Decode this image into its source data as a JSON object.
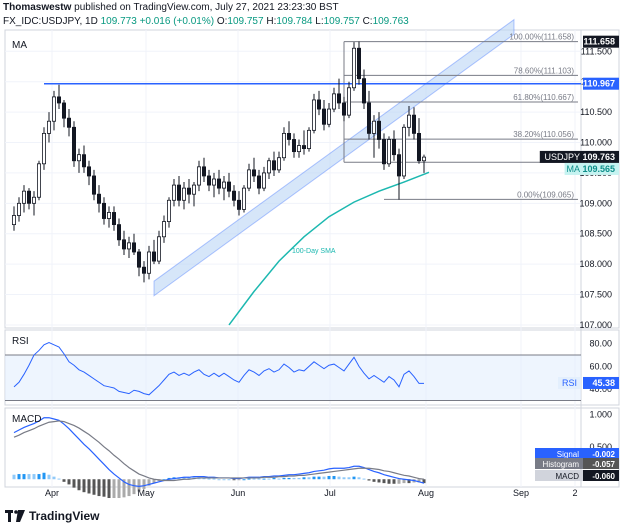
{
  "header": {
    "author": "Thomaswestw",
    "published": "published on TradingView.com, July 27, 2021 23:23:30 BST"
  },
  "symbol_line": {
    "symbol": "FX_IDC:USDJPY, 1D",
    "last": "109.773",
    "change": "+0.016 (+0.01%)",
    "o_label": "O:",
    "o": "109.757",
    "h_label": "H:",
    "h": "109.784",
    "l_label": "L:",
    "l": "109.757",
    "c_label": "C:",
    "c": "109.763"
  },
  "footer": {
    "brand": "TradingView"
  },
  "chart_data": [
    {
      "type": "candlestick",
      "pane_label": "MA",
      "y_ticks": [
        "111.500",
        "111.000",
        "110.500",
        "110.000",
        "109.500",
        "109.000",
        "108.500",
        "108.000",
        "107.500",
        "107.000"
      ],
      "ylim": [
        106.95,
        111.85
      ],
      "x_ticks": [
        "Apr",
        "May",
        "Jun",
        "Jul",
        "Aug",
        "Sep",
        "2"
      ],
      "candles": [
        [
          108.65,
          108.95,
          108.55,
          108.8
        ],
        [
          108.8,
          109.1,
          108.7,
          109.0
        ],
        [
          109.0,
          109.3,
          108.85,
          109.2
        ],
        [
          109.2,
          109.25,
          108.9,
          109.0
        ],
        [
          109.0,
          109.2,
          108.8,
          109.1
        ],
        [
          109.1,
          109.7,
          109.05,
          109.65
        ],
        [
          109.65,
          110.25,
          109.55,
          110.15
        ],
        [
          110.15,
          110.5,
          110.0,
          110.35
        ],
        [
          110.35,
          110.85,
          110.2,
          110.75
        ],
        [
          110.75,
          110.95,
          110.55,
          110.65
        ],
        [
          110.65,
          110.7,
          110.25,
          110.4
        ],
        [
          110.4,
          110.55,
          110.1,
          110.25
        ],
        [
          110.25,
          110.35,
          109.6,
          109.7
        ],
        [
          109.7,
          109.9,
          109.5,
          109.8
        ],
        [
          109.8,
          109.95,
          109.5,
          109.6
        ],
        [
          109.6,
          109.7,
          109.3,
          109.45
        ],
        [
          109.45,
          109.55,
          109.05,
          109.15
        ],
        [
          109.15,
          109.3,
          108.85,
          109.0
        ],
        [
          109.0,
          109.1,
          108.65,
          108.75
        ],
        [
          108.75,
          108.95,
          108.6,
          108.85
        ],
        [
          108.85,
          108.95,
          108.55,
          108.65
        ],
        [
          108.65,
          108.75,
          108.3,
          108.4
        ],
        [
          108.4,
          108.55,
          108.15,
          108.25
        ],
        [
          108.25,
          108.45,
          108.1,
          108.35
        ],
        [
          108.35,
          108.5,
          108.15,
          108.2
        ],
        [
          108.2,
          108.25,
          107.8,
          107.95
        ],
        [
          107.95,
          108.05,
          107.7,
          107.85
        ],
        [
          107.85,
          108.3,
          107.75,
          108.2
        ],
        [
          108.2,
          108.4,
          108.0,
          108.05
        ],
        [
          108.05,
          108.55,
          108.0,
          108.45
        ],
        [
          108.45,
          108.8,
          108.35,
          108.7
        ],
        [
          108.7,
          109.1,
          108.6,
          109.05
        ],
        [
          109.05,
          109.4,
          108.95,
          109.3
        ],
        [
          109.3,
          109.45,
          108.95,
          109.05
        ],
        [
          109.05,
          109.35,
          108.9,
          109.25
        ],
        [
          109.25,
          109.4,
          109.0,
          109.15
        ],
        [
          109.15,
          109.35,
          108.95,
          109.3
        ],
        [
          109.3,
          109.7,
          109.2,
          109.6
        ],
        [
          109.6,
          109.75,
          109.35,
          109.45
        ],
        [
          109.45,
          109.55,
          109.2,
          109.3
        ],
        [
          109.3,
          109.5,
          109.1,
          109.4
        ],
        [
          109.4,
          109.55,
          109.15,
          109.25
        ],
        [
          109.25,
          109.45,
          109.05,
          109.35
        ],
        [
          109.35,
          109.5,
          109.1,
          109.2
        ],
        [
          109.2,
          109.3,
          108.95,
          109.05
        ],
        [
          109.05,
          109.2,
          108.8,
          108.9
        ],
        [
          108.9,
          109.3,
          108.85,
          109.25
        ],
        [
          109.25,
          109.65,
          109.2,
          109.55
        ],
        [
          109.55,
          109.75,
          109.35,
          109.45
        ],
        [
          109.45,
          109.55,
          109.15,
          109.25
        ],
        [
          109.25,
          109.6,
          109.2,
          109.5
        ],
        [
          109.5,
          109.75,
          109.4,
          109.7
        ],
        [
          109.7,
          109.85,
          109.45,
          109.55
        ],
        [
          109.55,
          109.85,
          109.5,
          109.75
        ],
        [
          109.75,
          110.25,
          109.7,
          110.15
        ],
        [
          110.15,
          110.35,
          109.95,
          110.05
        ],
        [
          110.05,
          110.15,
          109.75,
          109.85
        ],
        [
          109.85,
          110.05,
          109.75,
          109.95
        ],
        [
          109.95,
          110.2,
          109.8,
          109.9
        ],
        [
          109.9,
          110.25,
          109.85,
          110.2
        ],
        [
          110.2,
          110.8,
          110.15,
          110.7
        ],
        [
          110.7,
          110.85,
          110.45,
          110.55
        ],
        [
          110.55,
          110.7,
          110.2,
          110.3
        ],
        [
          110.3,
          110.65,
          110.25,
          110.55
        ],
        [
          110.55,
          110.9,
          110.5,
          110.8
        ],
        [
          110.8,
          111.05,
          110.55,
          110.65
        ],
        [
          110.65,
          110.75,
          110.35,
          110.45
        ],
        [
          110.45,
          111.0,
          110.4,
          110.9
        ],
        [
          110.9,
          111.65,
          110.85,
          111.55
        ],
        [
          111.55,
          111.66,
          110.95,
          111.05
        ],
        [
          111.05,
          111.2,
          110.55,
          110.65
        ],
        [
          110.65,
          110.85,
          110.05,
          110.15
        ],
        [
          110.15,
          110.45,
          109.75,
          110.35
        ],
        [
          110.35,
          110.5,
          109.9,
          110.05
        ],
        [
          110.05,
          110.15,
          109.55,
          109.65
        ],
        [
          109.65,
          110.1,
          109.6,
          110.05
        ],
        [
          110.05,
          110.2,
          109.7,
          109.8
        ],
        [
          109.8,
          109.9,
          109.06,
          109.45
        ],
        [
          109.45,
          110.3,
          109.4,
          110.25
        ],
        [
          110.25,
          110.6,
          110.1,
          110.45
        ],
        [
          110.45,
          110.58,
          110.05,
          110.15
        ],
        [
          110.15,
          110.4,
          109.65,
          109.7
        ],
        [
          109.7,
          109.8,
          109.5,
          109.76
        ]
      ],
      "fibonacci": [
        {
          "label": "100.00%(111.658)",
          "value": 111.658
        },
        {
          "label": "78.60%(111.103)",
          "value": 111.103
        },
        {
          "label": "61.80%(110.667)",
          "value": 110.667
        },
        {
          "label": "38.20%(110.056)",
          "value": 110.056
        },
        {
          "label": "23.60%(1",
          "value": 109.675
        },
        {
          "label": "0.00%(109.065)",
          "value": 109.065
        }
      ],
      "horizontal_line": {
        "value": 110.967,
        "color": "#2962ff"
      },
      "channel": {
        "from": [
          28,
          107.48
        ],
        "to": [
          100,
          111.78
        ],
        "width": 0.24
      },
      "sma": {
        "name": "100-Day SMA",
        "color": "#1cb8b0",
        "points": [
          [
            43,
            107.0
          ],
          [
            48,
            107.55
          ],
          [
            53,
            108.05
          ],
          [
            58,
            108.45
          ],
          [
            63,
            108.78
          ],
          [
            68,
            109.02
          ],
          [
            73,
            109.2
          ],
          [
            78,
            109.35
          ],
          [
            83,
            109.51
          ]
        ]
      },
      "price_labels": [
        {
          "text": "111.658",
          "value": 111.658,
          "bg": "#131722",
          "fg": "#ffffff"
        },
        {
          "text": "110.967",
          "value": 110.967,
          "bg": "#2962ff",
          "fg": "#ffffff"
        },
        {
          "text": "109.763",
          "value": 109.763,
          "bg": "#131722",
          "fg": "#ffffff",
          "tag": "USDJPY"
        },
        {
          "text": "109.565",
          "value": 109.565,
          "bg": "#c6f3f1",
          "fg": "#0e8f8a",
          "tag": "MA"
        }
      ]
    },
    {
      "type": "line",
      "pane_label": "RSI",
      "ylim": [
        26,
        92
      ],
      "y_ticks": [
        "80.00",
        "60.00",
        "40.00"
      ],
      "band": [
        30,
        70
      ],
      "current": "45.38",
      "color": "#2962ff",
      "values": [
        42,
        46,
        53,
        61,
        70,
        74,
        79,
        81,
        79,
        77,
        71,
        64,
        61,
        57,
        55,
        52,
        49,
        46,
        43,
        42,
        41,
        38,
        37,
        36,
        39,
        38,
        36,
        35,
        39,
        43,
        48,
        53,
        55,
        52,
        54,
        52,
        55,
        57,
        53,
        51,
        54,
        51,
        54,
        51,
        48,
        46,
        52,
        57,
        55,
        52,
        56,
        58,
        55,
        57,
        62,
        59,
        55,
        57,
        56,
        60,
        64,
        61,
        58,
        61,
        62,
        59,
        56,
        62,
        68,
        60,
        54,
        49,
        52,
        49,
        46,
        51,
        48,
        42,
        53,
        56,
        51,
        45,
        45
      ]
    },
    {
      "type": "line",
      "pane_label": "MACD",
      "ylim": [
        -0.12,
        1.1
      ],
      "y_ticks": [
        "1.000",
        "0.500"
      ],
      "signal_name": "Signal",
      "signal_value": "-0.002",
      "histogram_name": "Histogram",
      "histogram_value": "-0.057",
      "macd_name": "MACD",
      "macd_value": "-0.060",
      "macd": [
        0.72,
        0.76,
        0.8,
        0.83,
        0.86,
        0.9,
        0.95,
        0.95,
        0.93,
        0.91,
        0.85,
        0.78,
        0.7,
        0.62,
        0.54,
        0.47,
        0.39,
        0.31,
        0.23,
        0.15,
        0.08,
        0.02,
        -0.04,
        -0.08,
        -0.1,
        -0.11,
        -0.1,
        -0.08,
        -0.06,
        -0.04,
        -0.02,
        0.0,
        0.01,
        0.02,
        0.03,
        0.03,
        0.04,
        0.04,
        0.04,
        0.03,
        0.03,
        0.02,
        0.02,
        0.02,
        0.01,
        0.01,
        0.02,
        0.03,
        0.03,
        0.03,
        0.04,
        0.04,
        0.05,
        0.05,
        0.06,
        0.07,
        0.07,
        0.08,
        0.09,
        0.1,
        0.12,
        0.13,
        0.14,
        0.16,
        0.17,
        0.17,
        0.17,
        0.18,
        0.2,
        0.2,
        0.18,
        0.15,
        0.12,
        0.1,
        0.07,
        0.05,
        0.03,
        0.01,
        0.0,
        -0.01,
        -0.02,
        -0.04,
        -0.06
      ],
      "signal": [
        0.65,
        0.68,
        0.72,
        0.75,
        0.78,
        0.82,
        0.85,
        0.88,
        0.89,
        0.9,
        0.89,
        0.86,
        0.83,
        0.79,
        0.74,
        0.69,
        0.63,
        0.57,
        0.5,
        0.44,
        0.37,
        0.31,
        0.24,
        0.18,
        0.13,
        0.08,
        0.05,
        0.02,
        0.0,
        -0.01,
        -0.02,
        -0.02,
        -0.02,
        -0.01,
        0.0,
        0.0,
        0.01,
        0.02,
        0.02,
        0.02,
        0.02,
        0.02,
        0.02,
        0.02,
        0.02,
        0.02,
        0.02,
        0.02,
        0.02,
        0.02,
        0.03,
        0.03,
        0.03,
        0.04,
        0.04,
        0.05,
        0.05,
        0.06,
        0.06,
        0.07,
        0.08,
        0.09,
        0.1,
        0.11,
        0.12,
        0.13,
        0.14,
        0.15,
        0.16,
        0.17,
        0.17,
        0.17,
        0.16,
        0.15,
        0.13,
        0.12,
        0.1,
        0.08,
        0.06,
        0.05,
        0.03,
        0.01,
        0.0
      ]
    }
  ]
}
